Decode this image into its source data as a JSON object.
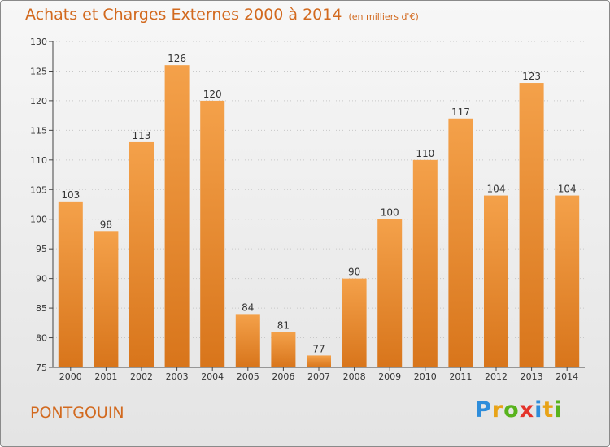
{
  "title": "Achats et Charges Externes 2000 à 2014",
  "unit": "(en milliers d'€)",
  "commune": "PONTGOUIN",
  "logo": {
    "letters": [
      "P",
      "r",
      "o",
      "x",
      "i",
      "t",
      "i"
    ],
    "colors": [
      "#2e8ddb",
      "#e8a317",
      "#58b31d",
      "#e4332a",
      "#2e8ddb",
      "#e8a317",
      "#58b31d"
    ]
  },
  "colors": {
    "bar": "#f0922e",
    "bar_dark": "#d97a1c",
    "title": "#d2691e",
    "grid": "#c8c8c8"
  },
  "chart_data": {
    "type": "bar",
    "categories": [
      "2000",
      "2001",
      "2002",
      "2003",
      "2004",
      "2005",
      "2006",
      "2007",
      "2008",
      "2009",
      "2010",
      "2011",
      "2012",
      "2013",
      "2014"
    ],
    "values": [
      103,
      98,
      113,
      126,
      120,
      84,
      81,
      77,
      90,
      100,
      110,
      117,
      104,
      123,
      104
    ],
    "ylim": [
      75,
      130
    ],
    "yticks": [
      75,
      80,
      85,
      90,
      95,
      100,
      105,
      110,
      115,
      120,
      125,
      130
    ],
    "grid": true
  }
}
